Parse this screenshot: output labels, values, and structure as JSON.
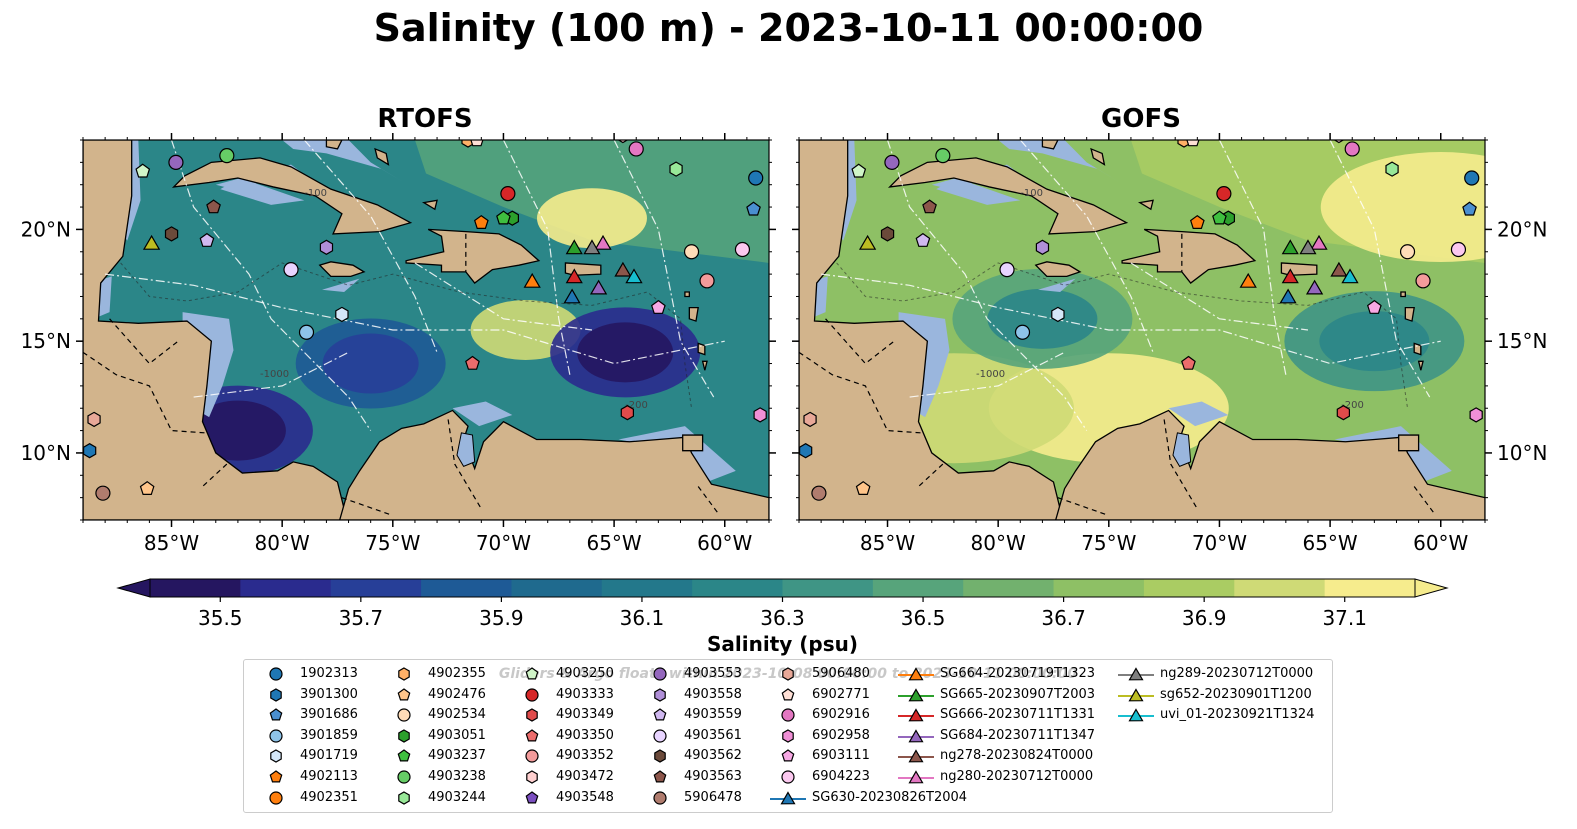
{
  "title": "Salinity (100 m) - 2023-10-11 00:00:00",
  "colors": {
    "land": "#d2b48c",
    "shallow": "#9ab6dd",
    "scale": [
      "#251660",
      "#2a2b8e",
      "#273f98",
      "#1e5a96",
      "#1f6a8e",
      "#23788b",
      "#2b8688",
      "#3f9585",
      "#57a47b",
      "#72b16e",
      "#8ec065",
      "#aacc63",
      "#cfda76",
      "#f6ec8d"
    ]
  },
  "chart_data": [
    {
      "type": "heatmap",
      "title": "RTOFS",
      "variable": "Salinity (100 m)",
      "lon_range": [
        -89,
        -58
      ],
      "lat_range": [
        7,
        24
      ],
      "xticks": [
        "85°W",
        "80°W",
        "75°W",
        "70°W",
        "65°W",
        "60°W"
      ],
      "xtick_values": [
        -85,
        -80,
        -75,
        -70,
        -65,
        -60
      ],
      "yticks": [
        "20°N",
        "15°N",
        "10°N"
      ],
      "ytick_values": [
        20,
        15,
        10
      ],
      "ytick_side": "left",
      "dominant_salinity_psu": 36.2,
      "low_salinity_cores": [
        {
          "lon": -64.5,
          "lat": 14.5,
          "value": 35.5
        },
        {
          "lon": -82,
          "lat": 11,
          "value": 35.5
        },
        {
          "lon": -76,
          "lat": 14,
          "value": 35.7
        }
      ],
      "high_salinity_areas": [
        {
          "lon": -66,
          "lat": 20.5,
          "value": 37.1
        },
        {
          "lon": -69,
          "lat": 15.5,
          "value": 37.0
        }
      ],
      "depth_contour_labels": [
        "-100",
        "-1000",
        "-200"
      ]
    },
    {
      "type": "heatmap",
      "title": "GOFS",
      "variable": "Salinity (100 m)",
      "lon_range": [
        -89,
        -58
      ],
      "lat_range": [
        7,
        24
      ],
      "xticks": [
        "85°W",
        "80°W",
        "75°W",
        "70°W",
        "65°W",
        "60°W"
      ],
      "xtick_values": [
        -85,
        -80,
        -75,
        -70,
        -65,
        -60
      ],
      "yticks": [
        "20°N",
        "15°N",
        "10°N"
      ],
      "ytick_values": [
        20,
        15,
        10
      ],
      "ytick_side": "right",
      "dominant_salinity_psu": 36.8,
      "low_salinity_cores": [
        {
          "lon": -63,
          "lat": 15,
          "value": 36.2
        },
        {
          "lon": -78,
          "lat": 16,
          "value": 36.3
        }
      ],
      "high_salinity_areas": [
        {
          "lon": -75,
          "lat": 12,
          "value": 37.1
        },
        {
          "lon": -82,
          "lat": 12,
          "value": 37.0
        },
        {
          "lon": -60,
          "lat": 21,
          "value": 37.1
        }
      ],
      "depth_contour_labels": [
        "-100",
        "-1000",
        "-200"
      ]
    }
  ],
  "colorbar": {
    "label": "Salinity (psu)",
    "min": 35.4,
    "max": 37.2,
    "ticks": [
      "35.5",
      "35.7",
      "35.9",
      "36.1",
      "36.3",
      "36.5",
      "36.7",
      "36.9",
      "37.1"
    ],
    "tick_values": [
      35.5,
      35.7,
      35.9,
      36.1,
      36.3,
      36.5,
      36.7,
      36.9,
      37.1
    ],
    "extend": "both"
  },
  "legend": {
    "title": "Gliders & Argo floats within 2023-10-08 00:00:00 to 2023-10-11 00:00:00",
    "entries": [
      {
        "label": "1902313",
        "marker": "circle",
        "color": "#1f77b4",
        "lon": -58.6,
        "lat": 22.3
      },
      {
        "label": "3901300",
        "marker": "hexagon",
        "color": "#1f77b4",
        "lon": -88.7,
        "lat": 10.1
      },
      {
        "label": "3901686",
        "marker": "pentagon",
        "color": "#4a8fd0",
        "lon": -58.7,
        "lat": 20.9
      },
      {
        "label": "3901859",
        "marker": "circle",
        "color": "#8ec3e8",
        "lon": -78.9,
        "lat": 15.4
      },
      {
        "label": "4901719",
        "marker": "hexagon",
        "color": "#d4e7f8",
        "lon": -77.3,
        "lat": 16.2
      },
      {
        "label": "4902113",
        "marker": "pentagon",
        "color": "#ff7f0e",
        "lon": -71.0,
        "lat": 20.3
      },
      {
        "label": "4902351",
        "marker": "circle",
        "color": "#ff7f0e",
        "lon": -71.1,
        "lat": 24.3
      },
      {
        "label": "4902355",
        "marker": "hexagon",
        "color": "#ffb067",
        "lon": -71.6,
        "lat": 24.0
      },
      {
        "label": "4902476",
        "marker": "pentagon",
        "color": "#ffc58a",
        "lon": -86.1,
        "lat": 8.4
      },
      {
        "label": "4902534",
        "marker": "circle",
        "color": "#ffdcb8",
        "lon": -61.5,
        "lat": 19.0
      },
      {
        "label": "4903051",
        "marker": "hexagon",
        "color": "#2ca02c",
        "lon": -69.6,
        "lat": 20.5
      },
      {
        "label": "4903237",
        "marker": "pentagon",
        "color": "#3fbf3f",
        "lon": -70.0,
        "lat": 20.5
      },
      {
        "label": "4903238",
        "marker": "circle",
        "color": "#66cc66",
        "lon": -82.5,
        "lat": 23.3
      },
      {
        "label": "4903244",
        "marker": "hexagon",
        "color": "#98e898",
        "lon": -62.2,
        "lat": 22.7
      },
      {
        "label": "4903250",
        "marker": "pentagon",
        "color": "#d0f5c8",
        "lon": -86.3,
        "lat": 22.6
      },
      {
        "label": "4903333",
        "marker": "circle",
        "color": "#d62728",
        "lon": -69.8,
        "lat": 21.6
      },
      {
        "label": "4903349",
        "marker": "hexagon",
        "color": "#e04b4b",
        "lon": -64.4,
        "lat": 11.8
      },
      {
        "label": "4903350",
        "marker": "pentagon",
        "color": "#ec6c6c",
        "lon": -71.4,
        "lat": 14.0
      },
      {
        "label": "4903352",
        "marker": "circle",
        "color": "#f39b9b",
        "lon": -60.8,
        "lat": 17.7
      },
      {
        "label": "4903472",
        "marker": "hexagon",
        "color": "#ffd0d0",
        "lon": -64.6,
        "lat": 24.2
      },
      {
        "label": "4903548",
        "marker": "pentagon",
        "color": "#7b4fc0",
        "lon": -65.5,
        "lat": 24.3
      },
      {
        "label": "4903553",
        "marker": "circle",
        "color": "#9467bd",
        "lon": -84.8,
        "lat": 23.0
      },
      {
        "label": "4903558",
        "marker": "hexagon",
        "color": "#b08fd8",
        "lon": -78.0,
        "lat": 19.2
      },
      {
        "label": "4903559",
        "marker": "pentagon",
        "color": "#d0b8f0",
        "lon": -83.4,
        "lat": 19.5
      },
      {
        "label": "4903561",
        "marker": "circle",
        "color": "#e8d4ff",
        "lon": -79.6,
        "lat": 18.2
      },
      {
        "label": "4903562",
        "marker": "hexagon",
        "color": "#6b4a3a",
        "lon": -85.0,
        "lat": 19.8
      },
      {
        "label": "4903563",
        "marker": "pentagon",
        "color": "#8c564b",
        "lon": -83.1,
        "lat": 21.0
      },
      {
        "label": "5906478",
        "marker": "circle",
        "color": "#b07c6e",
        "lon": -88.1,
        "lat": 8.2
      },
      {
        "label": "5906480",
        "marker": "hexagon",
        "color": "#e8a898",
        "lon": -88.5,
        "lat": 11.5
      },
      {
        "label": "6902771",
        "marker": "pentagon",
        "color": "#ffe0d6",
        "lon": -71.2,
        "lat": 24.0
      },
      {
        "label": "6902916",
        "marker": "circle",
        "color": "#e377c2",
        "lon": -64.0,
        "lat": 23.6
      },
      {
        "label": "6902958",
        "marker": "hexagon",
        "color": "#f08fd6",
        "lon": -58.4,
        "lat": 11.7
      },
      {
        "label": "6903111",
        "marker": "pentagon",
        "color": "#f7a8e4",
        "lon": -63.0,
        "lat": 16.5
      },
      {
        "label": "6904223",
        "marker": "circle",
        "color": "#fbc8ef",
        "lon": -59.2,
        "lat": 19.1
      },
      {
        "label": "SG630-20230826T2004",
        "marker": "triangle",
        "color": "#1f77b4",
        "line": true,
        "lon": -66.9,
        "lat": 17.0
      },
      {
        "label": "SG664-20230719T1323",
        "marker": "triangle",
        "color": "#ff7f0e",
        "line": true,
        "lon": -68.7,
        "lat": 17.7
      },
      {
        "label": "SG665-20230907T2003",
        "marker": "triangle",
        "color": "#2ca02c",
        "line": true,
        "lon": -66.8,
        "lat": 19.2
      },
      {
        "label": "SG666-20230711T1331",
        "marker": "triangle",
        "color": "#d62728",
        "line": true,
        "lon": -66.8,
        "lat": 17.9
      },
      {
        "label": "SG684-20230711T1347",
        "marker": "triangle",
        "color": "#9467bd",
        "line": true,
        "lon": -65.7,
        "lat": 17.4
      },
      {
        "label": "ng278-20230824T0000",
        "marker": "triangle",
        "color": "#8c564b",
        "line": true,
        "lon": -64.6,
        "lat": 18.2
      },
      {
        "label": "ng280-20230712T0000",
        "marker": "triangle",
        "color": "#e377c2",
        "line": true,
        "lon": -65.5,
        "lat": 19.4
      },
      {
        "label": "ng289-20230712T0000",
        "marker": "triangle",
        "color": "#7f7f7f",
        "line": true,
        "lon": -66.0,
        "lat": 19.2
      },
      {
        "label": "sg652-20230901T1200",
        "marker": "triangle",
        "color": "#bcbd22",
        "line": true,
        "lon": -85.9,
        "lat": 19.4
      },
      {
        "label": "uvi_01-20230921T1324",
        "marker": "triangle",
        "color": "#17becf",
        "line": true,
        "lon": -64.1,
        "lat": 17.9
      }
    ]
  }
}
